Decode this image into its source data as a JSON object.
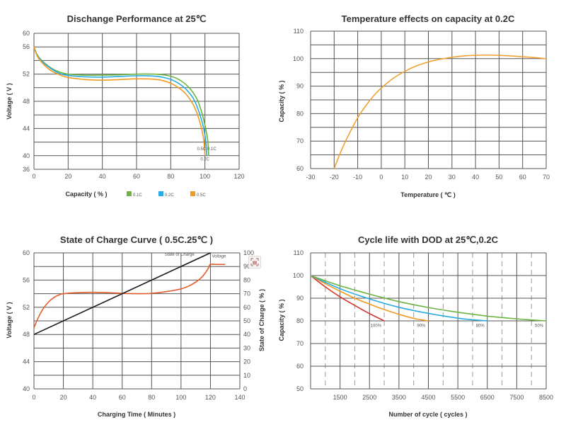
{
  "chart_data": [
    {
      "id": "discharge",
      "type": "line",
      "title": "Dischange Performance at 25℃",
      "xlabel": "Capacity ( % )",
      "ylabel": "Voltage ( V )",
      "xlim": [
        0,
        120
      ],
      "xticks": [
        0,
        20,
        40,
        60,
        80,
        100,
        120
      ],
      "y_gridlines": [
        60,
        56,
        54,
        52,
        50,
        48,
        46,
        44,
        42,
        40,
        36
      ],
      "yticks": [
        60,
        56,
        52,
        48,
        44,
        40,
        36
      ],
      "grid": true,
      "legend_position": "bottom",
      "series": [
        {
          "name": "0.1C",
          "color": "#6db33f",
          "x": [
            0,
            2,
            5,
            10,
            15,
            20,
            30,
            40,
            50,
            60,
            70,
            78,
            84,
            90,
            95,
            98,
            100,
            101.5,
            102,
            102.2
          ],
          "y": [
            56,
            54.8,
            53.9,
            52.9,
            52.3,
            52.0,
            51.85,
            51.85,
            51.9,
            52.0,
            52.0,
            51.8,
            51.3,
            50.2,
            48.5,
            46.5,
            44.5,
            42.5,
            41,
            40
          ]
        },
        {
          "name": "0.2C",
          "color": "#29abe2",
          "x": [
            0,
            2,
            5,
            10,
            15,
            20,
            30,
            40,
            50,
            60,
            70,
            76,
            82,
            88,
            93,
            96,
            98.5,
            100,
            100.8,
            101
          ],
          "y": [
            56,
            54.7,
            53.8,
            52.8,
            52.1,
            51.8,
            51.6,
            51.55,
            51.65,
            51.75,
            51.7,
            51.5,
            51.0,
            50.0,
            48.5,
            46.8,
            44.8,
            43,
            41.3,
            40
          ]
        },
        {
          "name": "0.5C",
          "color": "#f39a1e",
          "x": [
            0,
            2,
            5,
            10,
            15,
            20,
            30,
            40,
            50,
            60,
            70,
            76,
            82,
            88,
            92,
            95,
            97.5,
            99,
            99.7,
            100
          ],
          "y": [
            56,
            54.6,
            53.6,
            52.5,
            51.9,
            51.5,
            51.2,
            51.1,
            51.2,
            51.3,
            51.25,
            51.0,
            50.4,
            49.3,
            48.0,
            46.5,
            44.5,
            42.8,
            41.3,
            40
          ]
        }
      ],
      "annotations": [
        {
          "text": "0.5C",
          "x": 98,
          "y": 41
        },
        {
          "text": "0.1C",
          "x": 104,
          "y": 41
        },
        {
          "text": "0.2C",
          "x": 100,
          "y": 39
        }
      ]
    },
    {
      "id": "temperature",
      "type": "line",
      "title": "Temperature effects on capacity at 0.2C",
      "xlabel": "Temperature ( ℃ )",
      "ylabel": "Capacity ( % )",
      "xlim": [
        -30,
        70
      ],
      "ylim": [
        60,
        110
      ],
      "xticks": [
        -30,
        -20,
        -10,
        0,
        10,
        20,
        30,
        40,
        50,
        60,
        70
      ],
      "yticks": [
        60,
        70,
        80,
        90,
        100,
        110
      ],
      "y_gridstep": 5,
      "grid": true,
      "series": [
        {
          "name": "Capacity",
          "color": "#f0a030",
          "x": [
            -20,
            -17,
            -14,
            -10,
            -6,
            -3,
            0,
            5,
            10,
            15,
            20,
            25,
            30,
            35,
            40,
            45,
            50,
            55,
            60,
            65,
            70
          ],
          "y": [
            60,
            66.5,
            72,
            78.5,
            83.5,
            86.7,
            89.3,
            92.8,
            95.4,
            97.4,
            98.8,
            99.8,
            100.5,
            101.0,
            101.2,
            101.3,
            101.2,
            101.0,
            100.7,
            100.4,
            100.0
          ]
        }
      ]
    },
    {
      "id": "soc",
      "type": "line",
      "title": "State of Charge Curve ( 0.5C.25℃ )",
      "xlabel": "Charging Time ( Minutes )",
      "ylabel": "Voltage ( V )",
      "y2label": "State of Charge ( % )",
      "xlim": [
        0,
        140
      ],
      "ylim": [
        40,
        60
      ],
      "y2lim": [
        0,
        100
      ],
      "xticks": [
        0,
        20,
        40,
        60,
        80,
        100,
        120,
        140
      ],
      "yticks": [
        40,
        44,
        48,
        52,
        56,
        60
      ],
      "y2ticks": [
        0,
        10,
        20,
        30,
        40,
        50,
        60,
        70,
        80,
        90,
        100
      ],
      "y_gridstep": 2,
      "grid": true,
      "series": [
        {
          "name": "Voltage",
          "axis": "left",
          "color": "#e05a2b",
          "x": [
            0,
            3,
            6,
            10,
            14,
            18,
            20,
            25,
            30,
            40,
            50,
            60,
            70,
            80,
            90,
            100,
            105,
            110,
            114,
            117,
            119,
            120,
            125,
            130
          ],
          "y": [
            49,
            50.5,
            51.7,
            52.8,
            53.5,
            53.9,
            54.0,
            54.1,
            54.15,
            54.2,
            54.15,
            54.05,
            54.0,
            54.05,
            54.3,
            54.7,
            55.1,
            55.7,
            56.4,
            57.2,
            57.9,
            58.3,
            58.3,
            58.3
          ]
        },
        {
          "name": "State of Charge",
          "axis": "right",
          "color": "#1a1a1a",
          "x": [
            0,
            120
          ],
          "y": [
            40,
            100
          ]
        }
      ],
      "annotations": [
        {
          "text": "State of Charge",
          "x": 99,
          "y2": 98
        },
        {
          "text": "Voltage",
          "x": 121,
          "y": 59.3
        }
      ]
    },
    {
      "id": "cycle",
      "type": "line",
      "title": "Cycle life with DOD at 25℃,0.2C",
      "xlabel": "Number of cycle ( cycles )",
      "ylabel": "Capacity ( % )",
      "xlim": [
        500,
        8500
      ],
      "ylim": [
        50,
        110
      ],
      "xticks": [
        1500,
        2500,
        3500,
        4500,
        5500,
        6500,
        7500,
        8500
      ],
      "yticks": [
        50,
        60,
        70,
        80,
        90,
        100,
        110
      ],
      "x_dashed_minor": [
        1000,
        2000,
        3000,
        4000,
        5000,
        6000,
        7000,
        8000
      ],
      "grid": true,
      "series": [
        {
          "name": "100%",
          "color": "#d9342b",
          "x": [
            500,
            1000,
            1500,
            2000,
            2500,
            3000
          ],
          "y": [
            100,
            95.0,
            90.6,
            86.8,
            83.2,
            80.0
          ]
        },
        {
          "name": "90%",
          "color": "#f39a1e",
          "x": [
            500,
            1000,
            1500,
            2000,
            2500,
            3000,
            3500,
            4000,
            4500
          ],
          "y": [
            100,
            96.4,
            93.1,
            90.0,
            87.4,
            85.0,
            82.9,
            81.1,
            80.0
          ]
        },
        {
          "name": "80%",
          "color": "#29abe2",
          "x": [
            500,
            1500,
            2500,
            3500,
            4500,
            5500,
            6000,
            6500
          ],
          "y": [
            100,
            94.2,
            89.7,
            86.0,
            83.3,
            81.2,
            80.5,
            80.0
          ]
        },
        {
          "name": "50%",
          "color": "#6db33f",
          "x": [
            500,
            1500,
            2500,
            3500,
            4500,
            5500,
            6500,
            7500,
            8000,
            8500
          ],
          "y": [
            100,
            95.5,
            91.8,
            88.5,
            85.9,
            83.8,
            82.1,
            80.9,
            80.4,
            80.0
          ]
        }
      ],
      "annotations": [
        {
          "text": "100%",
          "x": 3000,
          "y": 78
        },
        {
          "text": "90%",
          "x": 4500,
          "y": 78
        },
        {
          "text": "80%",
          "x": 6500,
          "y": 78
        },
        {
          "text": "50%",
          "x": 8500,
          "y": 78
        }
      ]
    }
  ],
  "overlay": {
    "icon": "screenshot-tool-icon"
  }
}
